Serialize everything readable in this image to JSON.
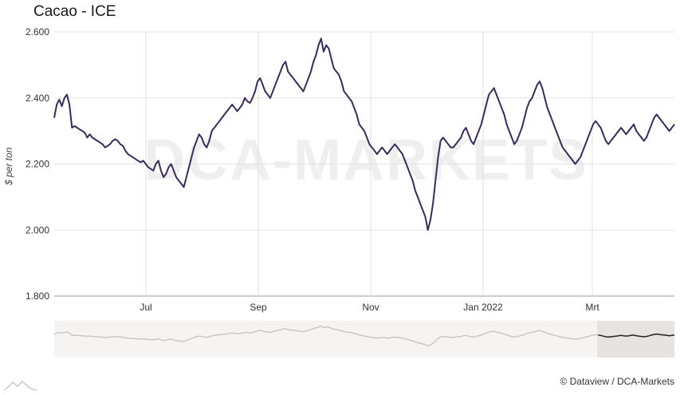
{
  "chart_data": {
    "type": "line",
    "title": "Cacao - ICE",
    "ylabel": "$ per ton",
    "ylim": [
      1800,
      2600
    ],
    "yticks": [
      1800,
      2000,
      2200,
      2400,
      2600
    ],
    "ytick_labels": [
      "1.800",
      "2.000",
      "2.200",
      "2.400",
      "2.600"
    ],
    "xtick_labels": [
      "Jul",
      "Sep",
      "Nov",
      "Jan 2022",
      "Mrt"
    ],
    "grid": true,
    "line_color": "#3b2a5c",
    "series": [
      {
        "values": [
          2340,
          2380,
          2395,
          2375,
          2400,
          2410,
          2380,
          2310,
          2315,
          2310,
          2305,
          2300,
          2295,
          2280,
          2290,
          2280,
          2275,
          2270,
          2265,
          2260,
          2250,
          2255,
          2260,
          2270,
          2275,
          2270,
          2260,
          2255,
          2240,
          2230,
          2225,
          2220,
          2215,
          2210,
          2205,
          2210,
          2200,
          2190,
          2185,
          2180,
          2200,
          2210,
          2180,
          2160,
          2170,
          2190,
          2200,
          2180,
          2160,
          2150,
          2140,
          2130,
          2160,
          2190,
          2220,
          2250,
          2270,
          2290,
          2280,
          2260,
          2250,
          2270,
          2300,
          2310,
          2320,
          2330,
          2340,
          2350,
          2360,
          2370,
          2380,
          2370,
          2360,
          2370,
          2380,
          2400,
          2390,
          2385,
          2400,
          2420,
          2450,
          2460,
          2440,
          2420,
          2410,
          2400,
          2420,
          2440,
          2460,
          2480,
          2500,
          2510,
          2480,
          2470,
          2460,
          2450,
          2440,
          2430,
          2420,
          2440,
          2460,
          2480,
          2510,
          2530,
          2560,
          2580,
          2540,
          2560,
          2550,
          2520,
          2490,
          2480,
          2470,
          2450,
          2420,
          2410,
          2400,
          2390,
          2370,
          2350,
          2320,
          2310,
          2300,
          2280,
          2260,
          2250,
          2240,
          2230,
          2240,
          2250,
          2240,
          2230,
          2240,
          2250,
          2260,
          2250,
          2240,
          2230,
          2210,
          2190,
          2170,
          2150,
          2120,
          2100,
          2080,
          2060,
          2040,
          2000,
          2030,
          2080,
          2150,
          2220,
          2270,
          2280,
          2270,
          2260,
          2250,
          2250,
          2260,
          2270,
          2280,
          2300,
          2310,
          2290,
          2270,
          2260,
          2280,
          2300,
          2320,
          2350,
          2380,
          2410,
          2420,
          2430,
          2410,
          2390,
          2370,
          2350,
          2320,
          2300,
          2280,
          2260,
          2270,
          2290,
          2310,
          2340,
          2370,
          2390,
          2400,
          2420,
          2440,
          2450,
          2430,
          2400,
          2370,
          2350,
          2330,
          2310,
          2290,
          2270,
          2250,
          2240,
          2230,
          2220,
          2210,
          2200,
          2210,
          2220,
          2240,
          2260,
          2280,
          2300,
          2320,
          2330,
          2320,
          2310,
          2290,
          2270,
          2260,
          2270,
          2280,
          2290,
          2300,
          2310,
          2300,
          2290,
          2300,
          2310,
          2320,
          2300,
          2290,
          2280,
          2270,
          2280,
          2300,
          2320,
          2340,
          2350,
          2340,
          2330,
          2320,
          2310,
          2300,
          2310,
          2320
        ]
      }
    ]
  },
  "watermark": "DCA-MARKETS",
  "credit": "© Dataview / DCA-Markets"
}
